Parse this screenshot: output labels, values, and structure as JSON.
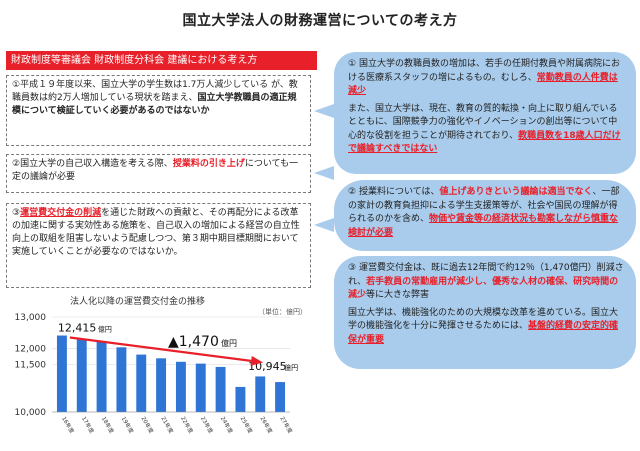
{
  "title": "国立大学法人の財務運営についての考え方",
  "left_header": "財政制度等審議会 財政制度分科会 建議における考え方",
  "left_box1": {
    "prefix": "①平成１９年度以来、国立大学の学生数は1.7万人減少している が、教職員数は約2万人増加している現状を踏まえ、",
    "bold": "国立大学教職員の適正規模について検証していく必要があるのではないか"
  },
  "left_box2": {
    "prefix": "②国立大学の自己収入構造を考える際、",
    "red": "授業料の引き上げ",
    "suffix": "についても一定の議論が必要"
  },
  "left_box3": {
    "num": "③",
    "red": "運営費交付金の削減",
    "suffix": "を通じた財政への貢献と、その再配分による改革の加速に関する実効性ある施策を、自己収入の増加による経営の自立性向上の取組を阻害しないよう配慮しつつ、第３期中期目標期間において実施していくことが必要なのではないか。"
  },
  "right_box1": {
    "num": "①",
    "p1_text": "国立大学の教職員数の増加は、若手の任期付教員や附属病院における医療系スタッフの増によるもの。むしろ、",
    "p1_red": "常勤教員の人件費は減少",
    "p2_text": "また、国立大学は、現在、教育の質的転換・向上に取り組んでいるとともに、国際競争力の強化やイノベーションの創出等について中心的な役割を担うことが期待されており、",
    "p2_red": "教職員数を18歳人口だけで議論すべきではない"
  },
  "right_box2": {
    "num": "②",
    "text1": "授業料については、",
    "red1": "値上げありきという議論は適当でなく",
    "text2": "、一部の家計の教育負担抑による学生支援策等が、社会や国民の理解が得られるのかを含め、",
    "red2": "物価や賃金等の経済状況も勘案しながら慎重な検討が必要"
  },
  "right_box3": {
    "num": "③",
    "text1": "運営費交付金は、既に過去12年間で約12％（1,470億円）削減され、",
    "red1": "若手教員の常勤雇用が減少し、優秀な人材の確保、研究時間の減少",
    "text2": "等に大きな弊害",
    "p2_text": "国立大学は、機能強化のための大規模な改革を進めている。国立大学の機能強化を十分に発揮させるためには、",
    "p2_red": "基盤的経費の安定的確保が重要"
  },
  "chart_title": "法人化以降の運営費交付金の推移",
  "chart_unit": "（単位：億円）",
  "chart_data": {
    "type": "bar",
    "categories": [
      "16年度",
      "17年度",
      "18年度",
      "19年度",
      "20年度",
      "21年度",
      "22年度",
      "23年度",
      "24年度",
      "25年度",
      "26年度",
      "27年度"
    ],
    "values": [
      12415,
      12317,
      12214,
      12043,
      11813,
      11695,
      11585,
      11528,
      11423,
      10792,
      11123,
      10945
    ],
    "ylim": [
      10000,
      13000
    ],
    "yticks": [
      "13,000",
      "12,000",
      "11,500",
      "10,000"
    ],
    "ytick_values": [
      13000,
      12000,
      11500,
      10000
    ],
    "start_label": "12,415",
    "start_unit": "億円",
    "end_label": "10,945",
    "end_unit": "億円",
    "diff_label": "▲1,470",
    "diff_unit": "億円",
    "bar_color": "#2e75d6",
    "arrow_color": "#e8202a"
  }
}
